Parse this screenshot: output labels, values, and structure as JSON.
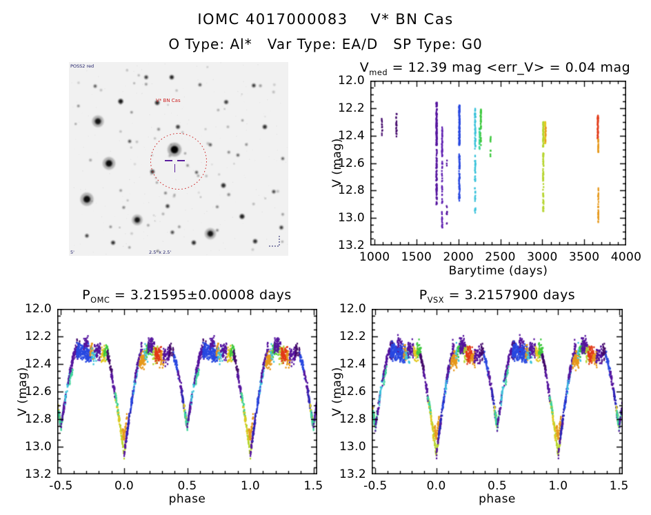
{
  "page": {
    "title": "IOMC 4017000083    V* BN Cas",
    "subtitle": "O Type: Al*   Var Type: EA/D   SP Type: G0"
  },
  "finder": {
    "target_label": "V* BN Cas",
    "corner_top_left": "POSS2 red",
    "corner_bottom_center": "2.5' x 2.5'",
    "corner_bottom_left": "5'",
    "circle_color": "#cc2222",
    "label_color": "#cc2222",
    "marker_color": "#5b1f9e",
    "corner_text_color": "#1a1a66"
  },
  "palette": {
    "dkviolet": "#43096b",
    "violet": "#55149e",
    "violet2": "#5c1bb0",
    "navy": "#2626b8",
    "blue": "#2848e0",
    "cyan": "#38c2da",
    "teal": "#3cd49a",
    "green": "#3fc93f",
    "chartreuse": "#b5d42d",
    "yellow": "#e2c81e",
    "orange": "#e6991c",
    "red": "#e23a18"
  },
  "phase_model": {
    "base": 12.33,
    "p_w": 0.135,
    "p_depth": 0.73,
    "p_exp": 1.3,
    "s_w": 0.115,
    "s_depth": 0.53,
    "s_exp": 1.4,
    "sig_out": 0.05,
    "sig_in": 0.03,
    "primary_min_mag": 13.06,
    "secondary_min_mag": 12.86,
    "max_light_mag": 12.3
  },
  "phase_epochs": [
    {
      "c": 0.985,
      "s": 0.07,
      "col": "chartreuse",
      "n": 70,
      "o": 0
    },
    {
      "c": 0.955,
      "s": 0.05,
      "col": "yellow",
      "n": 38,
      "o": 0.02
    },
    {
      "c": 0.005,
      "s": 0.035,
      "col": "orange",
      "n": 45,
      "o": -0.12
    },
    {
      "c": 0.02,
      "s": 0.04,
      "col": "violet",
      "n": 55,
      "o": 0
    },
    {
      "c": 0.045,
      "s": 0.05,
      "col": "navy",
      "n": 45,
      "o": 0
    },
    {
      "c": 0.075,
      "s": 0.05,
      "col": "blue",
      "n": 45,
      "o": 0
    },
    {
      "c": 0.1,
      "s": 0.05,
      "col": "cyan",
      "n": 28,
      "o": 0
    },
    {
      "c": 0.115,
      "s": 0.06,
      "col": "violet",
      "n": 70,
      "o": -0.02
    },
    {
      "c": 0.145,
      "s": 0.05,
      "col": "orange",
      "n": 75,
      "o": 0.04
    },
    {
      "c": 0.175,
      "s": 0.03,
      "col": "cyan",
      "n": 20,
      "o": -0.02
    },
    {
      "c": 0.2,
      "s": 0.05,
      "col": "green",
      "n": 42,
      "o": -0.04
    },
    {
      "c": 0.215,
      "s": 0.05,
      "col": "violet",
      "n": 75,
      "o": -0.06
    },
    {
      "c": 0.245,
      "s": 0.04,
      "col": "chartreuse",
      "n": 32,
      "o": 0
    },
    {
      "c": 0.27,
      "s": 0.05,
      "col": "red",
      "n": 85,
      "o": 0
    },
    {
      "c": 0.3,
      "s": 0.04,
      "col": "orange",
      "n": 30,
      "o": 0.03
    },
    {
      "c": 0.335,
      "s": 0.05,
      "col": "violet",
      "n": 55,
      "o": 0
    },
    {
      "c": 0.375,
      "s": 0.04,
      "col": "dkviolet",
      "n": 35,
      "o": -0.02
    },
    {
      "c": 0.41,
      "s": 0.04,
      "col": "blue",
      "n": 40,
      "o": 0
    },
    {
      "c": 0.445,
      "s": 0.04,
      "col": "violet",
      "n": 45,
      "o": 0
    },
    {
      "c": 0.475,
      "s": 0.04,
      "col": "navy",
      "n": 40,
      "o": 0
    },
    {
      "c": 0.485,
      "s": 0.025,
      "col": "yellow",
      "n": 16,
      "o": 0
    },
    {
      "c": 0.5,
      "s": 0.04,
      "col": "teal",
      "n": 45,
      "o": 0
    },
    {
      "c": 0.52,
      "s": 0.04,
      "col": "violet",
      "n": 50,
      "o": 0
    },
    {
      "c": 0.55,
      "s": 0.04,
      "col": "cyan",
      "n": 32,
      "o": 0
    },
    {
      "c": 0.575,
      "s": 0.04,
      "col": "violet",
      "n": 45,
      "o": 0
    },
    {
      "c": 0.58,
      "s": 0.025,
      "col": "teal",
      "n": 16,
      "o": 0.05
    },
    {
      "c": 0.61,
      "s": 0.05,
      "col": "violet",
      "n": 60,
      "o": -0.02
    },
    {
      "c": 0.635,
      "s": 0.025,
      "col": "dkviolet",
      "n": 22,
      "o": -0.04
    },
    {
      "c": 0.655,
      "s": 0.06,
      "col": "blue",
      "n": 110,
      "o": -0.02
    },
    {
      "c": 0.7,
      "s": 0.04,
      "col": "violet",
      "n": 40,
      "o": -0.07
    },
    {
      "c": 0.715,
      "s": 0.06,
      "col": "blue",
      "n": 90,
      "o": 0
    },
    {
      "c": 0.745,
      "s": 0.03,
      "col": "orange",
      "n": 24,
      "o": -0.02
    },
    {
      "c": 0.765,
      "s": 0.04,
      "col": "cyan",
      "n": 28,
      "o": 0
    },
    {
      "c": 0.79,
      "s": 0.05,
      "col": "violet",
      "n": 60,
      "o": -0.03
    },
    {
      "c": 0.835,
      "s": 0.04,
      "col": "yellow",
      "n": 38,
      "o": 0
    },
    {
      "c": 0.86,
      "s": 0.04,
      "col": "green",
      "n": 38,
      "o": -0.03
    },
    {
      "c": 0.885,
      "s": 0.04,
      "col": "dkviolet",
      "n": 45,
      "o": 0
    },
    {
      "c": 0.915,
      "s": 0.04,
      "col": "violet",
      "n": 45,
      "o": 0.02
    },
    {
      "c": 0.94,
      "s": 0.03,
      "col": "teal",
      "n": 18,
      "o": 0
    }
  ],
  "chart_data": [
    {
      "id": "barytime",
      "type": "scatter",
      "title_parts": {
        "pre": "V",
        "sub": "med",
        "post": " = 12.39 mag <err_V> = 0.04 mag"
      },
      "xlabel": "Barytime (days)",
      "ylabel": "V (mag)",
      "xlim": [
        950,
        4000
      ],
      "xticks": [
        1000,
        1500,
        2000,
        2500,
        3000,
        3500,
        4000
      ],
      "x_minor": 100,
      "x_fmt": "int",
      "ylim": [
        12.0,
        13.2
      ],
      "y_axis_reversed_mag": true,
      "yticks": [
        12.0,
        12.2,
        12.4,
        12.6,
        12.8,
        13.0,
        13.2
      ],
      "y_minor": 0.05,
      "grid": false,
      "legend": "none",
      "seed": 7,
      "clusters": [
        {
          "t": 1090,
          "dt": 9,
          "col": "dkviolet",
          "bands": [
            [
              12.27,
              12.4,
              12
            ]
          ]
        },
        {
          "t": 1262,
          "dt": 12,
          "col": "dkviolet",
          "bands": [
            [
              12.24,
              12.33,
              10
            ],
            [
              12.34,
              12.41,
              8
            ]
          ]
        },
        {
          "t": 1740,
          "dt": 9,
          "col": "violet",
          "bands": [
            [
              12.16,
              12.47,
              130
            ],
            [
              12.5,
              12.91,
              85
            ]
          ]
        },
        {
          "t": 1806,
          "dt": 7,
          "col": "violet2",
          "bands": [
            [
              12.33,
              12.56,
              40
            ],
            [
              12.58,
              12.9,
              28
            ],
            [
              12.95,
              13.07,
              16
            ]
          ]
        },
        {
          "t": 1862,
          "dt": 6,
          "col": "violet",
          "bands": [
            [
              12.91,
              13.05,
              10
            ],
            [
              12.58,
              12.62,
              3
            ]
          ]
        },
        {
          "t": 2012,
          "dt": 11,
          "col": "blue",
          "bands": [
            [
              12.18,
              12.47,
              120
            ],
            [
              12.52,
              12.88,
              70
            ]
          ]
        },
        {
          "t": 2200,
          "dt": 10,
          "col": "cyan",
          "bands": [
            [
              12.2,
              12.5,
              55
            ],
            [
              12.53,
              12.97,
              45
            ]
          ]
        },
        {
          "t": 2252,
          "dt": 7,
          "col": "teal",
          "bands": [
            [
              12.34,
              12.5,
              28
            ]
          ]
        },
        {
          "t": 2267,
          "dt": 8,
          "col": "green",
          "bands": [
            [
              12.21,
              12.35,
              40
            ],
            [
              12.38,
              12.47,
              12
            ]
          ]
        },
        {
          "t": 2383,
          "dt": 6,
          "col": "green",
          "bands": [
            [
              12.4,
              12.47,
              7
            ],
            [
              12.5,
              12.56,
              6
            ]
          ]
        },
        {
          "t": 3012,
          "dt": 9,
          "col": "chartreuse",
          "bands": [
            [
              12.3,
              12.48,
              60
            ],
            [
              12.52,
              12.8,
              38
            ],
            [
              12.82,
              12.95,
              22
            ]
          ]
        },
        {
          "t": 3036,
          "dt": 6,
          "col": "yellow",
          "bands": [
            [
              12.3,
              12.47,
              35
            ]
          ]
        },
        {
          "t": 3040,
          "dt": 4,
          "col": "orange",
          "bands": [
            [
              12.34,
              12.45,
              14
            ]
          ]
        },
        {
          "t": 3663,
          "dt": 7,
          "col": "red",
          "bands": [
            [
              12.25,
              12.42,
              55
            ]
          ]
        },
        {
          "t": 3668,
          "dt": 6,
          "col": "orange",
          "bands": [
            [
              12.42,
              12.52,
              22
            ],
            [
              12.78,
              13.04,
              34
            ]
          ]
        }
      ]
    },
    {
      "id": "omc-phase",
      "type": "scatter",
      "title_parts": {
        "pre": "P",
        "sub": "OMC",
        "post": " = 3.21595±0.00008 days"
      },
      "xlabel": "phase",
      "ylabel": "V (mag)",
      "xlim": [
        -0.53,
        1.53
      ],
      "xticks": [
        -0.5,
        0.0,
        0.5,
        1.0,
        1.5
      ],
      "x_minor": 0.1,
      "x_fmt": "1dp",
      "ylim": [
        12.0,
        13.2
      ],
      "yticks": [
        12.0,
        12.2,
        12.4,
        12.6,
        12.8,
        13.0,
        13.2
      ],
      "y_minor": 0.05,
      "grid": false,
      "legend": "none",
      "seed": 11,
      "series_ref": "phase_epochs",
      "model_ref": "phase_model"
    },
    {
      "id": "vsx-phase",
      "type": "scatter",
      "title_parts": {
        "pre": "P",
        "sub": "VSX",
        "post": " = 3.2157900 days"
      },
      "xlabel": "phase",
      "ylabel": "V (mag)",
      "xlim": [
        -0.53,
        1.53
      ],
      "xticks": [
        -0.5,
        0.0,
        0.5,
        1.0,
        1.5
      ],
      "x_minor": 0.1,
      "x_fmt": "1dp",
      "ylim": [
        12.0,
        13.2
      ],
      "yticks": [
        12.0,
        12.2,
        12.4,
        12.6,
        12.8,
        13.0,
        13.2
      ],
      "y_minor": 0.05,
      "grid": false,
      "legend": "none",
      "seed": 23,
      "series_ref": "phase_epochs",
      "model_ref": "phase_model"
    }
  ]
}
